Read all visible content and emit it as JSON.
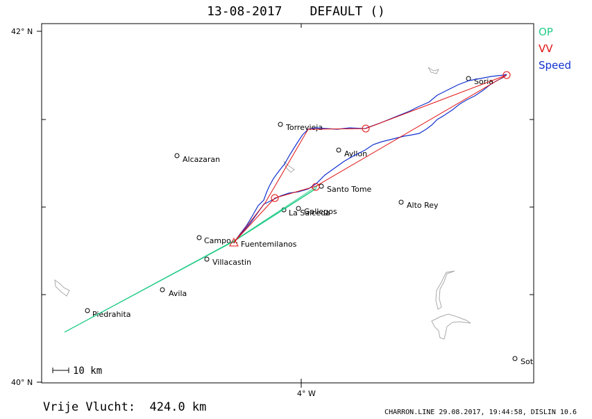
{
  "header": {
    "date": "13-08-2017",
    "name": "DEFAULT ()"
  },
  "legend": [
    {
      "label": "OP",
      "color": "#22cc88"
    },
    {
      "label": "VV",
      "color": "#e01010"
    },
    {
      "label": "Speed",
      "color": "#1030d0"
    }
  ],
  "axes": {
    "lat_top": "42° N",
    "lat_bottom": "40° N",
    "lon_bottom": "4° W"
  },
  "scale_bar": "10 km",
  "cities": [
    {
      "name": "Soria"
    },
    {
      "name": "Torrevieja"
    },
    {
      "name": "Alcazaran"
    },
    {
      "name": "Ayllon"
    },
    {
      "name": "Santo Tome"
    },
    {
      "name": "Alto Rey"
    },
    {
      "name": "La Salceda"
    },
    {
      "name": "Gallegos"
    },
    {
      "name": "Campo..."
    },
    {
      "name": "Fuentemilanos"
    },
    {
      "name": "Villacastin"
    },
    {
      "name": "Avila"
    },
    {
      "name": "Piedrahita"
    },
    {
      "name": "Sot"
    }
  ],
  "footer": {
    "distance": "Vrije Vlucht:  424.0 km",
    "info": "CHARRON.LINE 29.08.2017, 19:44:58, DISLIN 10.6"
  }
}
